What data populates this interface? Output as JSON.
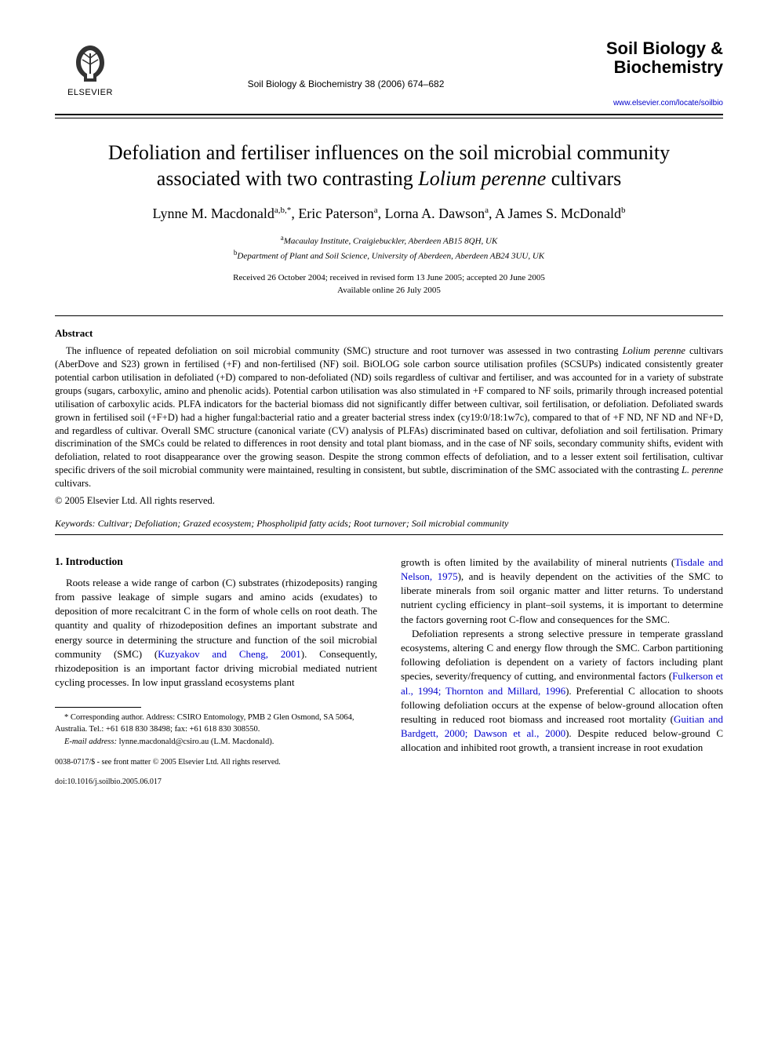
{
  "header": {
    "publisher_name": "ELSEVIER",
    "citation": "Soil Biology & Biochemistry 38 (2006) 674–682",
    "journal_title_line1": "Soil Biology &",
    "journal_title_line2": "Biochemistry",
    "journal_url": "www.elsevier.com/locate/soilbio"
  },
  "article": {
    "title_pre": "Defoliation and fertiliser influences on the soil microbial community associated with two contrasting ",
    "title_italic": "Lolium perenne",
    "title_post": " cultivars",
    "authors_html": "Lynne M. Macdonald<sup>a,b,*</sup>, Eric Paterson<sup>a</sup>, Lorna A. Dawson<sup>a</sup>, A James S. McDonald<sup>b</sup>",
    "affil_a": "Macaulay Institute, Craigiebuckler, Aberdeen AB15 8QH, UK",
    "affil_b": "Department of Plant and Soil Science, University of Aberdeen, Aberdeen AB24 3UU, UK",
    "dates_line1": "Received 26 October 2004; received in revised form 13 June 2005; accepted 20 June 2005",
    "dates_line2": "Available online 26 July 2005"
  },
  "abstract": {
    "heading": "Abstract",
    "text": "The influence of repeated defoliation on soil microbial community (SMC) structure and root turnover was assessed in two contrasting Lolium perenne cultivars (AberDove and S23) grown in fertilised (+F) and non-fertilised (NF) soil. BiOLOG sole carbon source utilisation profiles (SCSUPs) indicated consistently greater potential carbon utilisation in defoliated (+D) compared to non-defoliated (ND) soils regardless of cultivar and fertiliser, and was accounted for in a variety of substrate groups (sugars, carboxylic, amino and phenolic acids). Potential carbon utilisation was also stimulated in +F compared to NF soils, primarily through increased potential utilisation of carboxylic acids. PLFA indicators for the bacterial biomass did not significantly differ between cultivar, soil fertilisation, or defoliation. Defoliated swards grown in fertilised soil (+F+D) had a higher fungal:bacterial ratio and a greater bacterial stress index (cy19:0/18:1w7c), compared to that of +F ND, NF ND and NF+D, and regardless of cultivar. Overall SMC structure (canonical variate (CV) analysis of PLFAs) discriminated based on cultivar, defoliation and soil fertilisation. Primary discrimination of the SMCs could be related to differences in root density and total plant biomass, and in the case of NF soils, secondary community shifts, evident with defoliation, related to root disappearance over the growing season. Despite the strong common effects of defoliation, and to a lesser extent soil fertilisation, cultivar specific drivers of the soil microbial community were maintained, resulting in consistent, but subtle, discrimination of the SMC associated with the contrasting L. perenne cultivars.",
    "copyright": "© 2005 Elsevier Ltd. All rights reserved."
  },
  "keywords": {
    "label": "Keywords:",
    "list": "Cultivar; Defoliation; Grazed ecosystem; Phospholipid fatty acids; Root turnover; Soil microbial community"
  },
  "section1": {
    "heading": "1. Introduction",
    "para1_pre": "Roots release a wide range of carbon (C) substrates (rhizodeposits) ranging from passive leakage of simple sugars and amino acids (exudates) to deposition of more recalcitrant C in the form of whole cells on root death. The quantity and quality of rhizodeposition defines an important substrate and energy source in determining the structure and function of the soil microbial community (SMC) (",
    "para1_cite1": "Kuzyakov and Cheng, 2001",
    "para1_post": "). Consequently, rhizodeposition is an important factor driving microbial mediated nutrient cycling processes. In low input grassland ecosystems plant",
    "para1b_pre": "growth is often limited by the availability of mineral nutrients (",
    "para1b_cite": "Tisdale and Nelson, 1975",
    "para1b_post": "), and is heavily dependent on the activities of the SMC to liberate minerals from soil organic matter and litter returns. To understand nutrient cycling efficiency in plant–soil systems, it is important to determine the factors governing root C-flow and consequences for the SMC.",
    "para2_pre": "Defoliation represents a strong selective pressure in temperate grassland ecosystems, altering C and energy flow through the SMC. Carbon partitioning following defoliation is dependent on a variety of factors including plant species, severity/frequency of cutting, and environmental factors (",
    "para2_cite1": "Fulkerson et al., 1994; Thornton and Millard, 1996",
    "para2_mid": "). Preferential C allocation to shoots following defoliation occurs at the expense of below-ground allocation often resulting in reduced root biomass and increased root mortality (",
    "para2_cite2": "Guitian and Bardgett, 2000; Dawson et al., 2000",
    "para2_post": "). Despite reduced below-ground C allocation and inhibited root growth, a transient increase in root exudation"
  },
  "footnotes": {
    "corr": "* Corresponding author. Address: CSIRO Entomology, PMB 2 Glen Osmond, SA 5064, Australia. Tel.: +61 618 830 38498; fax: +61 618 830 308550.",
    "email_label": "E-mail address:",
    "email_value": "lynne.macdonald@csiro.au (L.M. Macdonald).",
    "issn": "0038-0717/$ - see front matter © 2005 Elsevier Ltd. All rights reserved.",
    "doi": "doi:10.1016/j.soilbio.2005.06.017"
  },
  "colors": {
    "text": "#000000",
    "link": "#0000cc",
    "background": "#ffffff"
  }
}
